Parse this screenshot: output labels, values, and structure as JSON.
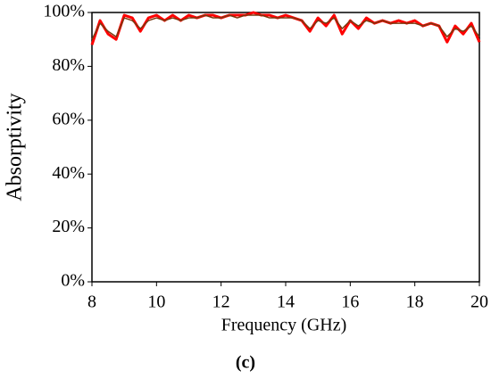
{
  "chart_data": {
    "type": "line",
    "xlabel": "Frequency (GHz)",
    "ylabel": "Absorptivity",
    "caption": "(c)",
    "x": [
      8,
      8.25,
      8.5,
      8.75,
      9,
      9.25,
      9.5,
      9.75,
      10,
      10.25,
      10.5,
      10.75,
      11,
      11.25,
      11.5,
      11.75,
      12,
      12.25,
      12.5,
      12.75,
      13,
      13.25,
      13.5,
      13.75,
      14,
      14.25,
      14.5,
      14.75,
      15,
      15.25,
      15.5,
      15.75,
      16,
      16.25,
      16.5,
      16.75,
      17,
      17.25,
      17.5,
      17.75,
      18,
      18.25,
      18.5,
      18.75,
      19,
      19.25,
      19.5,
      19.75,
      20
    ],
    "series": [
      {
        "color": "#ff0000",
        "values": [
          88,
          97,
          92,
          90,
          99,
          98,
          93,
          98,
          99,
          97,
          99,
          97,
          99,
          98,
          99,
          99,
          98,
          99,
          99,
          99,
          100,
          99,
          99,
          98,
          99,
          98,
          97,
          93,
          98,
          95,
          99,
          92,
          97,
          94,
          98,
          96,
          97,
          96,
          97,
          96,
          97,
          95,
          96,
          95,
          89,
          95,
          92,
          96,
          89
        ]
      },
      {
        "color": "#7a3a10",
        "values": [
          90,
          96,
          93,
          91,
          98,
          97,
          94,
          97,
          98,
          97,
          98,
          97,
          98,
          98,
          99,
          98,
          98,
          99,
          98,
          99,
          99,
          99,
          98,
          98,
          98,
          98,
          97,
          94,
          97,
          96,
          98,
          94,
          97,
          95,
          97,
          96,
          97,
          96,
          96,
          96,
          96,
          95,
          96,
          95,
          91,
          94,
          93,
          95,
          91
        ]
      }
    ],
    "xlim": [
      8,
      20
    ],
    "xticks": [
      8,
      10,
      12,
      14,
      16,
      18,
      20
    ],
    "ylim": [
      0,
      100
    ],
    "yticks": [
      {
        "value": 0,
        "label": "0%"
      },
      {
        "value": 20,
        "label": "20%"
      },
      {
        "value": 40,
        "label": "40%"
      },
      {
        "value": 60,
        "label": "60%"
      },
      {
        "value": 80,
        "label": "80%"
      },
      {
        "value": 100,
        "label": "100%"
      }
    ],
    "grid": false
  }
}
